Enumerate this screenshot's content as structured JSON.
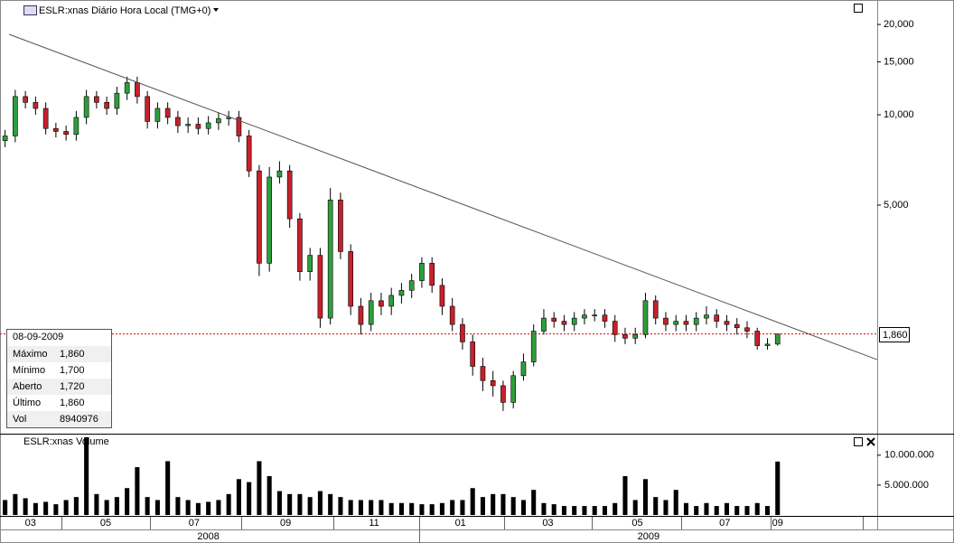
{
  "chart_data": {
    "type": "candlestick",
    "title": "ESLR:xnas Diário Hora Local (TMG+0)",
    "volume_title": "ESLR:xnas Volume",
    "log_scale": true,
    "up_color": "#2e9e3a",
    "down_color": "#c8202a",
    "volume_color": "#000000",
    "xlim": [
      -0.5,
      85.8
    ],
    "ylim": [
      865,
      24130
    ],
    "yticks": [
      {
        "value": 5000,
        "label": "5,000"
      },
      {
        "value": 10000,
        "label": "10,000"
      },
      {
        "value": 15000,
        "label": "15,000"
      },
      {
        "value": 20000,
        "label": "20,000"
      }
    ],
    "volume_ylim": [
      0,
      13300000
    ],
    "volume_yticks": [
      {
        "value": 5000000,
        "label": "5.000.000"
      },
      {
        "value": 10000000,
        "label": "10.000.000"
      }
    ],
    "xticks": [
      {
        "value": 2.5,
        "label": "03"
      },
      {
        "value": 9.9,
        "label": "05"
      },
      {
        "value": 18.6,
        "label": "07"
      },
      {
        "value": 27.6,
        "label": "09"
      },
      {
        "value": 36.3,
        "label": "11"
      },
      {
        "value": 44.8,
        "label": "01"
      },
      {
        "value": 53.4,
        "label": "03"
      },
      {
        "value": 62.2,
        "label": "05"
      },
      {
        "value": 70.8,
        "label": "07"
      },
      {
        "value": 76,
        "label": "09"
      }
    ],
    "year_labels": [
      {
        "value": 20,
        "label": "2008"
      },
      {
        "value": 63.3,
        "label": "2009"
      }
    ],
    "open": [
      8200,
      8500,
      11500,
      11000,
      10500,
      9000,
      8800,
      8600,
      9800,
      11500,
      11000,
      10500,
      11800,
      12800,
      11500,
      9500,
      10500,
      9800,
      9200,
      9300,
      9000,
      9400,
      9700,
      9800,
      8500,
      6500,
      3200,
      6200,
      6500,
      4500,
      3000,
      3400,
      2100,
      5200,
      3500,
      2300,
      2000,
      2400,
      2300,
      2500,
      2600,
      2800,
      3200,
      2700,
      2300,
      2000,
      1750,
      1450,
      1300,
      1250,
      1100,
      1350,
      1500,
      1900,
      2100,
      2050,
      2000,
      2100,
      2150,
      2150,
      2050,
      1850,
      1800,
      1850,
      2400,
      2100,
      2000,
      2050,
      2000,
      2100,
      2150,
      2050,
      2000,
      1950,
      1900,
      1700,
      1720
    ],
    "high": [
      8900,
      12100,
      12000,
      11500,
      11000,
      9400,
      9200,
      10300,
      12100,
      12000,
      11500,
      12400,
      13400,
      13400,
      12000,
      11000,
      11000,
      10300,
      9800,
      9800,
      9900,
      10200,
      10300,
      10300,
      8900,
      6800,
      6700,
      7000,
      6800,
      4700,
      3600,
      3600,
      5700,
      5500,
      3700,
      2450,
      2550,
      2550,
      2650,
      2750,
      2950,
      3350,
      3350,
      2850,
      2450,
      2100,
      1850,
      1550,
      1400,
      1300,
      1400,
      1600,
      2000,
      2250,
      2200,
      2150,
      2200,
      2250,
      2250,
      2250,
      2150,
      1950,
      1950,
      2550,
      2500,
      2200,
      2150,
      2150,
      2200,
      2300,
      2250,
      2150,
      2100,
      2050,
      1950,
      1800,
      1860
    ],
    "low": [
      7800,
      8100,
      10500,
      10000,
      8600,
      8400,
      8200,
      8200,
      9300,
      10500,
      10000,
      10000,
      11200,
      10900,
      9000,
      9000,
      9300,
      8700,
      8700,
      8600,
      8600,
      8900,
      9200,
      8100,
      6200,
      2900,
      3000,
      5900,
      4200,
      2800,
      2800,
      1950,
      2000,
      3300,
      2150,
      1850,
      1900,
      2150,
      2150,
      2350,
      2450,
      2650,
      2550,
      2150,
      1900,
      1650,
      1350,
      1200,
      1150,
      1030,
      1050,
      1300,
      1450,
      1850,
      1950,
      1900,
      1900,
      2000,
      2050,
      1950,
      1750,
      1720,
      1720,
      1800,
      2000,
      1900,
      1900,
      1900,
      1900,
      2000,
      1950,
      1900,
      1850,
      1800,
      1650,
      1650,
      1700
    ],
    "close": [
      8500,
      11500,
      11000,
      10500,
      9000,
      8800,
      8600,
      9800,
      11500,
      11000,
      10500,
      11800,
      12800,
      11500,
      9500,
      10500,
      9800,
      9200,
      9300,
      9000,
      9400,
      9700,
      9800,
      8500,
      6500,
      3200,
      6200,
      6500,
      4500,
      3000,
      3400,
      2100,
      5200,
      3500,
      2300,
      2000,
      2400,
      2300,
      2500,
      2600,
      2800,
      3200,
      2700,
      2300,
      2000,
      1750,
      1450,
      1300,
      1250,
      1100,
      1350,
      1500,
      1900,
      2100,
      2050,
      2000,
      2100,
      2150,
      2150,
      2050,
      1850,
      1800,
      1850,
      2400,
      2100,
      2000,
      2050,
      2000,
      2100,
      2150,
      2050,
      2000,
      1950,
      1900,
      1700,
      1720,
      1860
    ],
    "volume": [
      2500000,
      3500000,
      2800000,
      2000000,
      2200000,
      1800000,
      2500000,
      3000000,
      13000000,
      3500000,
      2500000,
      3000000,
      4500000,
      8000000,
      3000000,
      2500000,
      9000000,
      3000000,
      2500000,
      2000000,
      2200000,
      2500000,
      3500000,
      6000000,
      5500000,
      9000000,
      6500000,
      4000000,
      3500000,
      3500000,
      3000000,
      4000000,
      3500000,
      3000000,
      2500000,
      2500000,
      2500000,
      2500000,
      2000000,
      2000000,
      2000000,
      1800000,
      1800000,
      2000000,
      2500000,
      2500000,
      4500000,
      3000000,
      3500000,
      3500000,
      3000000,
      2500000,
      4200000,
      2000000,
      1800000,
      1500000,
      1500000,
      1500000,
      1500000,
      1500000,
      2000000,
      6500000,
      2500000,
      6000000,
      3000000,
      2500000,
      4200000,
      2000000,
      1500000,
      2000000,
      1500000,
      2000000,
      1500000,
      1500000,
      2000000,
      1500000,
      8940976
    ],
    "trendline": {
      "x": [
        0.4,
        85.8
      ],
      "y": [
        18540,
        1527
      ]
    },
    "last_price": {
      "value": 1860,
      "label": "1,860"
    },
    "info_box": {
      "date": "08-09-2009",
      "rows": [
        {
          "label": "Máximo",
          "value": "1,860"
        },
        {
          "label": "Mínimo",
          "value": "1,700"
        },
        {
          "label": "Aberto",
          "value": "1,720"
        },
        {
          "label": "Último",
          "value": "1,860"
        },
        {
          "label": "Vol",
          "value": "8940976"
        }
      ]
    }
  }
}
